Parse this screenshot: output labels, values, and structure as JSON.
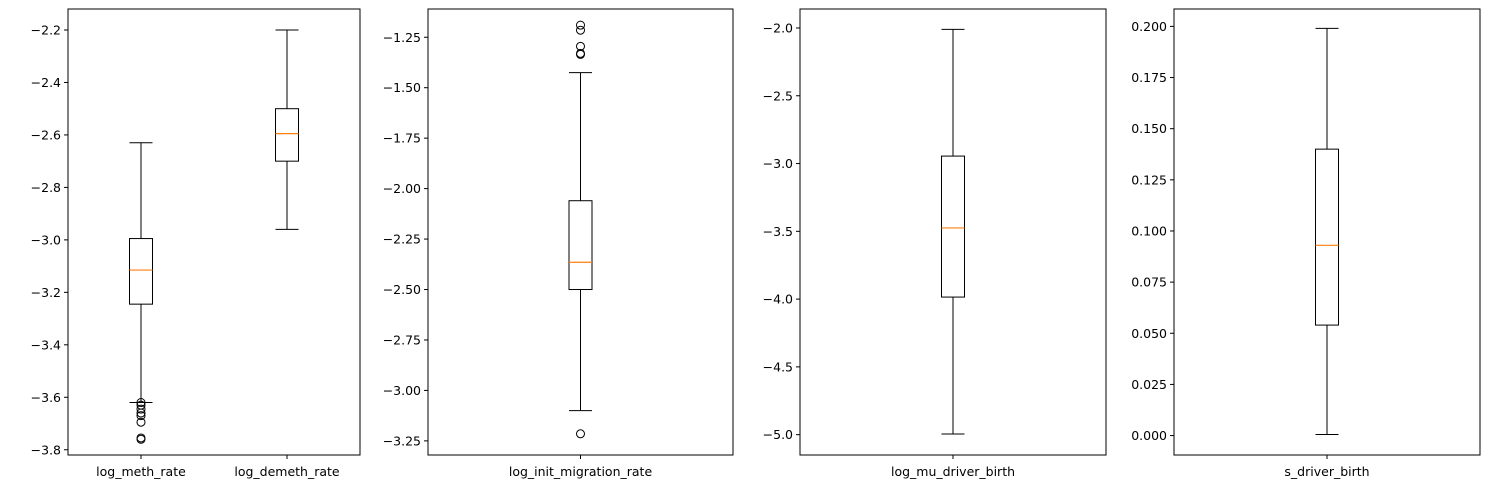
{
  "colors": {
    "box": "#000000",
    "median": "#ff7f0e",
    "background": "#ffffff"
  },
  "chart_data": [
    {
      "type": "box",
      "categories": [
        "log_meth_rate",
        "log_demeth_rate"
      ],
      "ylim": [
        -3.82,
        -2.12
      ],
      "yticks": [
        -3.8,
        -3.6,
        -3.4,
        -3.2,
        -3.0,
        -2.8,
        -2.6,
        -2.4,
        -2.2
      ],
      "ytick_labels": [
        "−3.8",
        "−3.6",
        "−3.4",
        "−3.2",
        "−3.0",
        "−2.8",
        "−2.6",
        "−2.4",
        "−2.2"
      ],
      "grid": false,
      "boxes": [
        {
          "whisker_low": -3.62,
          "q1": -3.245,
          "median": -3.115,
          "q3": -2.995,
          "whisker_high": -2.63,
          "outliers": [
            -3.62,
            -3.63,
            -3.645,
            -3.66,
            -3.67,
            -3.695,
            -3.755,
            -3.76
          ]
        },
        {
          "whisker_low": -2.96,
          "q1": -2.7,
          "median": -2.595,
          "q3": -2.5,
          "whisker_high": -2.2,
          "outliers": []
        }
      ]
    },
    {
      "type": "box",
      "categories": [
        "log_init_migration_rate"
      ],
      "ylim": [
        -3.32,
        -1.11
      ],
      "yticks": [
        -3.25,
        -3.0,
        -2.75,
        -2.5,
        -2.25,
        -2.0,
        -1.75,
        -1.5,
        -1.25
      ],
      "ytick_labels": [
        "−3.25",
        "−3.00",
        "−2.75",
        "−2.50",
        "−2.25",
        "−2.00",
        "−1.75",
        "−1.50",
        "−1.25"
      ],
      "grid": false,
      "boxes": [
        {
          "whisker_low": -3.1,
          "q1": -2.5,
          "median": -2.365,
          "q3": -2.06,
          "whisker_high": -1.425,
          "outliers": [
            -3.215,
            -1.335,
            -1.33,
            -1.295,
            -1.215,
            -1.19
          ]
        }
      ]
    },
    {
      "type": "box",
      "categories": [
        "log_mu_driver_birth"
      ],
      "ylim": [
        -5.15,
        -1.86
      ],
      "yticks": [
        -5.0,
        -4.5,
        -4.0,
        -3.5,
        -3.0,
        -2.5,
        -2.0
      ],
      "ytick_labels": [
        "−5.0",
        "−4.5",
        "−4.0",
        "−3.5",
        "−3.0",
        "−2.5",
        "−2.0"
      ],
      "grid": false,
      "boxes": [
        {
          "whisker_low": -4.995,
          "q1": -3.985,
          "median": -3.475,
          "q3": -2.945,
          "whisker_high": -2.01,
          "outliers": []
        }
      ]
    },
    {
      "type": "box",
      "categories": [
        "s_driver_birth"
      ],
      "ylim": [
        -0.0095,
        0.2085
      ],
      "yticks": [
        0.0,
        0.025,
        0.05,
        0.075,
        0.1,
        0.125,
        0.15,
        0.175,
        0.2
      ],
      "ytick_labels": [
        "0.000",
        "0.025",
        "0.050",
        "0.075",
        "0.100",
        "0.125",
        "0.150",
        "0.175",
        "0.200"
      ],
      "grid": false,
      "boxes": [
        {
          "whisker_low": 0.0005,
          "q1": 0.054,
          "median": 0.093,
          "q3": 0.14,
          "whisker_high": 0.199,
          "outliers": []
        }
      ]
    }
  ]
}
